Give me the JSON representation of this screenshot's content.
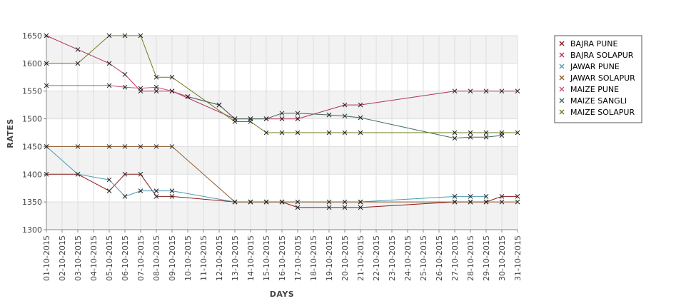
{
  "chart_data": {
    "type": "line",
    "title": "",
    "xlabel": "DAYS",
    "ylabel": "RATES",
    "ylim": [
      1300,
      1650
    ],
    "yticks": [
      1300,
      1350,
      1400,
      1450,
      1500,
      1550,
      1600,
      1650
    ],
    "grid": true,
    "legend_position": "top-right",
    "categories": [
      "01-10-2015",
      "02-10-2015",
      "03-10-2015",
      "04-10-2015",
      "05-10-2015",
      "06-10-2015",
      "07-10-2015",
      "08-10-2015",
      "09-10-2015",
      "10-10-2015",
      "11-10-2015",
      "12-10-2015",
      "13-10-2015",
      "14-10-2015",
      "15-10-2015",
      "16-10-2015",
      "17-10-2015",
      "18-10-2015",
      "19-10-2015",
      "20-10-2015",
      "21-10-2015",
      "22-10-2015",
      "23-10-2015",
      "24-10-2015",
      "25-10-2015",
      "26-10-2015",
      "27-10-2015",
      "28-10-2015",
      "29-10-2015",
      "30-10-2015",
      "31-10-2015"
    ],
    "series": [
      {
        "name": "BAJRA PUNE",
        "color": "#8b1a1a",
        "values": [
          1400,
          null,
          1400,
          null,
          1370,
          1400,
          1400,
          1360,
          1360,
          null,
          null,
          null,
          1350,
          1350,
          1350,
          1350,
          1340,
          null,
          1340,
          1340,
          1340,
          null,
          null,
          null,
          null,
          null,
          1350,
          1350,
          1350,
          1360,
          1360
        ]
      },
      {
        "name": "BAJRA SOLAPUR",
        "color": "#b03060",
        "values": [
          1650,
          null,
          1625,
          null,
          1600,
          1580,
          1550,
          1550,
          1550,
          null,
          null,
          null,
          1500,
          1500,
          1500,
          1500,
          1500,
          null,
          null,
          1525,
          1525,
          null,
          null,
          null,
          null,
          null,
          1550,
          1550,
          1550,
          1550,
          1550
        ]
      },
      {
        "name": "JAWAR PUNE",
        "color": "#4a9ab5",
        "values": [
          1450,
          null,
          1400,
          null,
          1390,
          1360,
          1370,
          1370,
          1370,
          null,
          null,
          null,
          1350,
          1350,
          1350,
          1350,
          null,
          null,
          null,
          null,
          1350,
          null,
          null,
          null,
          null,
          null,
          1360,
          1360,
          1360,
          null,
          null
        ]
      },
      {
        "name": "JAWAR SOLAPUR",
        "color": "#8b5a2b",
        "values": [
          1450,
          null,
          1450,
          null,
          1450,
          1450,
          1450,
          1450,
          1450,
          null,
          null,
          null,
          1350,
          1350,
          1350,
          1350,
          1350,
          null,
          1350,
          1350,
          1350,
          null,
          null,
          null,
          null,
          null,
          1350,
          1350,
          1350,
          1350,
          1350
        ]
      },
      {
        "name": "MAIZE PUNE",
        "color": "#c0507a",
        "values": [
          1560,
          null,
          null,
          null,
          1560,
          1557,
          1555,
          1557,
          1550,
          1540,
          null,
          1525,
          1500,
          1500,
          1500,
          1500,
          1500,
          null,
          null,
          null,
          null,
          null,
          null,
          null,
          null,
          null,
          null,
          null,
          null,
          null,
          null
        ]
      },
      {
        "name": "MAIZE SANGLI",
        "color": "#3d6b5a",
        "values": [
          null,
          null,
          null,
          null,
          null,
          null,
          null,
          null,
          null,
          1540,
          null,
          1525,
          1500,
          1500,
          1500,
          1510,
          1510,
          null,
          1507,
          1505,
          1502,
          null,
          null,
          null,
          null,
          null,
          1465,
          1467,
          1467,
          1470,
          null
        ]
      },
      {
        "name": "MAIZE SOLAPUR",
        "color": "#6b7a1a",
        "values": [
          1600,
          null,
          1600,
          null,
          1650,
          1650,
          1650,
          1575,
          1575,
          null,
          null,
          null,
          1495,
          1495,
          1475,
          1475,
          1475,
          null,
          1475,
          1475,
          1475,
          null,
          null,
          null,
          null,
          null,
          1475,
          1475,
          1475,
          1475,
          1475
        ]
      }
    ]
  }
}
